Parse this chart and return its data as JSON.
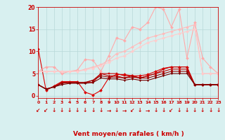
{
  "xlabel": "Vent moyen/en rafales ( km/h )",
  "bg_color": "#d8f0f0",
  "grid_color": "#b8d8d8",
  "xlim": [
    0,
    23
  ],
  "ylim": [
    -0.5,
    20
  ],
  "yticks": [
    0,
    5,
    10,
    15,
    20
  ],
  "xticks": [
    0,
    1,
    2,
    3,
    4,
    5,
    6,
    7,
    8,
    9,
    10,
    11,
    12,
    13,
    14,
    15,
    16,
    17,
    18,
    19,
    20,
    21,
    22,
    23
  ],
  "series": [
    {
      "x": [
        0,
        1,
        2,
        3,
        4,
        5,
        6,
        7,
        8,
        9,
        10,
        11,
        12,
        13,
        14,
        15,
        16,
        17,
        18,
        19,
        20,
        21,
        22,
        23
      ],
      "y": [
        10.5,
        1.2,
        2.2,
        3.2,
        3.2,
        3.2,
        0.8,
        0.2,
        1.2,
        4.0,
        4.8,
        4.8,
        4.5,
        4.5,
        4.8,
        5.5,
        6.2,
        6.5,
        6.5,
        6.5,
        2.5,
        2.5,
        2.5,
        2.5
      ],
      "color": "#dd0000",
      "lw": 0.8,
      "marker": "D",
      "ms": 2.0
    },
    {
      "x": [
        0,
        1,
        2,
        3,
        4,
        5,
        6,
        7,
        8,
        9,
        10,
        11,
        12,
        13,
        14,
        15,
        16,
        17,
        18,
        19,
        20,
        21,
        22,
        23
      ],
      "y": [
        2.5,
        1.5,
        2.0,
        3.0,
        3.0,
        3.0,
        3.0,
        3.0,
        5.0,
        5.0,
        5.0,
        4.5,
        4.5,
        4.0,
        4.5,
        5.0,
        6.0,
        6.5,
        6.5,
        6.5,
        2.5,
        2.5,
        2.5,
        2.5
      ],
      "color": "#cc0000",
      "lw": 0.8,
      "marker": "s",
      "ms": 2.0
    },
    {
      "x": [
        0,
        1,
        2,
        3,
        4,
        5,
        6,
        7,
        8,
        9,
        10,
        11,
        12,
        13,
        14,
        15,
        16,
        17,
        18,
        19,
        20,
        21,
        22,
        23
      ],
      "y": [
        2.5,
        1.5,
        2.0,
        3.0,
        3.0,
        3.0,
        3.0,
        3.5,
        5.0,
        4.5,
        4.5,
        4.0,
        4.5,
        4.0,
        4.5,
        5.0,
        5.5,
        6.0,
        6.0,
        6.0,
        2.5,
        2.5,
        2.5,
        2.5
      ],
      "color": "#bb0000",
      "lw": 0.8,
      "marker": "^",
      "ms": 2.0
    },
    {
      "x": [
        0,
        1,
        2,
        3,
        4,
        5,
        6,
        7,
        8,
        9,
        10,
        11,
        12,
        13,
        14,
        15,
        16,
        17,
        18,
        19,
        20,
        21,
        22,
        23
      ],
      "y": [
        2.5,
        1.5,
        2.0,
        2.8,
        3.0,
        3.0,
        3.0,
        3.5,
        4.5,
        4.2,
        4.2,
        4.0,
        4.2,
        4.0,
        4.0,
        4.5,
        5.0,
        5.5,
        5.5,
        5.5,
        2.5,
        2.5,
        2.5,
        2.5
      ],
      "color": "#990000",
      "lw": 0.8,
      "marker": "o",
      "ms": 2.0
    },
    {
      "x": [
        0,
        1,
        2,
        3,
        4,
        5,
        6,
        7,
        8,
        9,
        10,
        11,
        12,
        13,
        14,
        15,
        16,
        17,
        18,
        19,
        20,
        21,
        22,
        23
      ],
      "y": [
        2.5,
        1.5,
        2.0,
        2.5,
        2.8,
        2.8,
        2.8,
        3.0,
        4.0,
        3.8,
        3.8,
        3.5,
        3.8,
        3.5,
        3.5,
        4.0,
        4.5,
        5.0,
        5.0,
        5.0,
        2.5,
        2.5,
        2.5,
        2.5
      ],
      "color": "#770000",
      "lw": 0.8,
      "marker": "v",
      "ms": 2.0
    },
    {
      "x": [
        0,
        1,
        2,
        3,
        4,
        5,
        6,
        7,
        8,
        9,
        10,
        11,
        12,
        13,
        14,
        15,
        16,
        17,
        18,
        19,
        20,
        21,
        22,
        23
      ],
      "y": [
        5.5,
        6.5,
        6.5,
        5.0,
        5.5,
        5.8,
        8.2,
        8.0,
        5.5,
        9.0,
        13.0,
        12.5,
        15.5,
        15.0,
        16.5,
        20.0,
        19.5,
        15.5,
        19.5,
        8.5,
        16.5,
        8.5,
        6.5,
        5.0
      ],
      "color": "#ffaaaa",
      "lw": 0.8,
      "marker": "D",
      "ms": 2.0
    },
    {
      "x": [
        0,
        1,
        2,
        3,
        4,
        5,
        6,
        7,
        8,
        9,
        10,
        11,
        12,
        13,
        14,
        15,
        16,
        17,
        18,
        19,
        20,
        21,
        22,
        23
      ],
      "y": [
        5.5,
        5.5,
        5.5,
        5.5,
        5.5,
        5.5,
        6.0,
        6.5,
        7.0,
        8.0,
        9.5,
        10.0,
        11.0,
        12.0,
        13.0,
        13.5,
        14.0,
        14.5,
        15.0,
        15.5,
        16.0,
        5.0,
        5.0,
        5.0
      ],
      "color": "#ffbbbb",
      "lw": 0.8,
      "marker": "D",
      "ms": 2.0
    },
    {
      "x": [
        0,
        1,
        2,
        3,
        4,
        5,
        6,
        7,
        8,
        9,
        10,
        11,
        12,
        13,
        14,
        15,
        16,
        17,
        18,
        19,
        20,
        21,
        22,
        23
      ],
      "y": [
        5.5,
        5.5,
        5.5,
        5.5,
        5.5,
        5.5,
        5.8,
        6.2,
        6.8,
        7.5,
        8.5,
        9.0,
        10.0,
        11.0,
        12.0,
        12.5,
        13.0,
        13.5,
        14.0,
        14.5,
        15.0,
        5.0,
        5.0,
        5.0
      ],
      "color": "#ffcccc",
      "lw": 0.8,
      "marker": "D",
      "ms": 2.0
    }
  ],
  "arrows": [
    "↙",
    "↙",
    "↓",
    "↓",
    "↓",
    "↓",
    "↓",
    "↓",
    "↓",
    "→",
    "↓",
    "→",
    "↙",
    "↓",
    "→",
    "↓",
    "↓",
    "↙",
    "↓",
    "↓",
    "↓",
    "↓",
    "↓",
    "↓"
  ],
  "arrow_color": "#cc0000",
  "axis_color": "#cc0000",
  "tick_color": "#cc0000",
  "label_color": "#cc0000"
}
